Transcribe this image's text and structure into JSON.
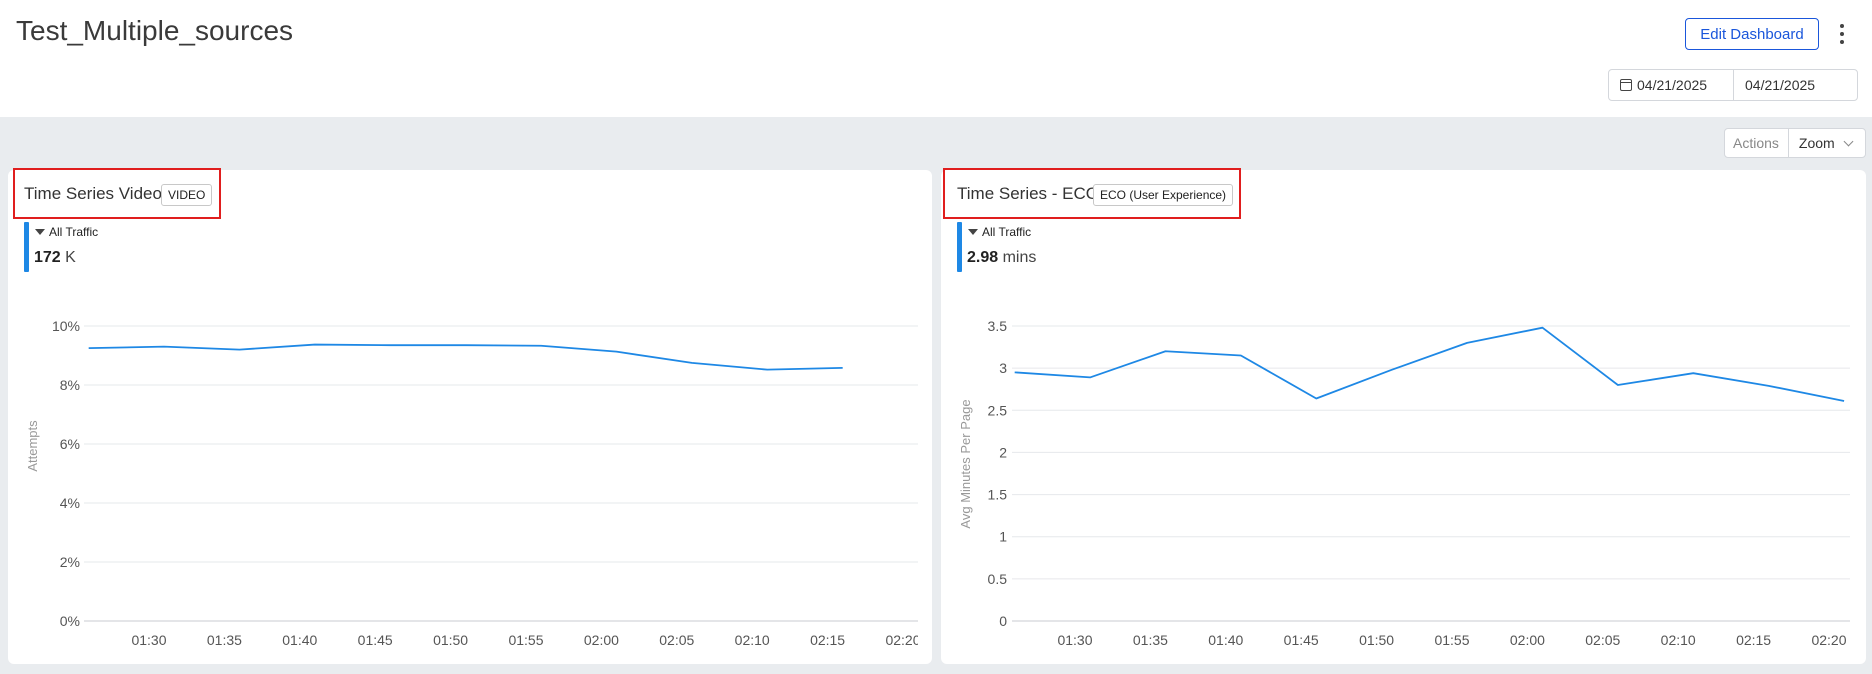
{
  "page": {
    "title": "Test_Multiple_sources",
    "edit_button": "Edit Dashboard",
    "more_icon": "kebab-vertical-icon",
    "date_start": "04/21/2025",
    "date_end": "04/21/2025",
    "calendar_icon": "calendar-icon"
  },
  "toolbar": {
    "actions_label": "Actions",
    "zoom_label": "Zoom",
    "zoom_icon": "chevron-down-icon"
  },
  "colors": {
    "accent": "#1a56db",
    "series": "#1e88e5",
    "highlight_border": "#e01e1e",
    "canvas_bg": "#e9ecef"
  },
  "widgets": [
    {
      "title": "Time Series Video",
      "tag": "VIDEO",
      "filter_label": "All Traffic",
      "kpi_value": "172",
      "kpi_unit": "K"
    },
    {
      "title": "Time Series - ECO",
      "tag": "ECO (User Experience)",
      "filter_label": "All Traffic",
      "kpi_value": "2.98",
      "kpi_unit": "mins"
    }
  ],
  "chart_data": [
    {
      "type": "line",
      "title": "Time Series Video",
      "ylabel": "Attempts",
      "xlabel": "",
      "x_ticks": [
        "01:30",
        "01:35",
        "01:40",
        "01:45",
        "01:50",
        "01:55",
        "02:00",
        "02:05",
        "02:10",
        "02:15",
        "02:20"
      ],
      "y_ticks": [
        "0%",
        "2%",
        "4%",
        "6%",
        "8%",
        "10%"
      ],
      "ylim": [
        0,
        10
      ],
      "grid": true,
      "series": [
        {
          "name": "All Traffic",
          "x": [
            "01:26",
            "01:31",
            "01:36",
            "01:41",
            "01:46",
            "01:51",
            "01:56",
            "02:01",
            "02:06",
            "02:11",
            "02:16"
          ],
          "values": [
            9.25,
            9.3,
            9.2,
            9.37,
            9.35,
            9.35,
            9.33,
            9.13,
            8.75,
            8.52,
            8.58
          ]
        }
      ]
    },
    {
      "type": "line",
      "title": "Time Series - ECO",
      "ylabel": "Avg Minutes Per Page",
      "xlabel": "",
      "x_ticks": [
        "01:30",
        "01:35",
        "01:40",
        "01:45",
        "01:50",
        "01:55",
        "02:00",
        "02:05",
        "02:10",
        "02:15",
        "02:20"
      ],
      "y_ticks": [
        "0",
        "0.5",
        "1",
        "1.5",
        "2",
        "2.5",
        "3",
        "3.5"
      ],
      "ylim": [
        0,
        3.5
      ],
      "grid": true,
      "series": [
        {
          "name": "All Traffic",
          "x": [
            "01:26",
            "01:31",
            "01:36",
            "01:41",
            "01:46",
            "01:51",
            "01:56",
            "02:01",
            "02:06",
            "02:11",
            "02:16",
            "02:21"
          ],
          "values": [
            2.95,
            2.89,
            3.2,
            3.15,
            2.64,
            2.98,
            3.3,
            3.48,
            2.8,
            2.94,
            2.79,
            2.61
          ]
        }
      ]
    }
  ]
}
